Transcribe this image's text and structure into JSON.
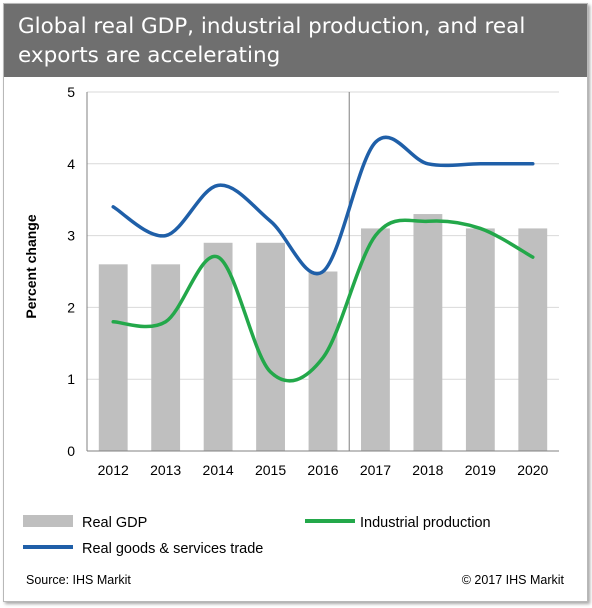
{
  "header": {
    "title": "Global real GDP, industrial production, and real exports are accelerating"
  },
  "chart_data": {
    "type": "bar",
    "title": "",
    "xlabel": "",
    "ylabel": "Percent change",
    "ylim": [
      0,
      5
    ],
    "yticks": [
      "0",
      "1",
      "2",
      "3",
      "4",
      "5"
    ],
    "categories": [
      "2012",
      "2013",
      "2014",
      "2015",
      "2016",
      "2017",
      "2018",
      "2019",
      "2020"
    ],
    "grid": true,
    "forecast_divider_after": "2016",
    "series": [
      {
        "name": "Real GDP",
        "type": "bar",
        "color": "#bfbfbf",
        "values": [
          2.6,
          2.6,
          2.9,
          2.9,
          2.5,
          3.1,
          3.3,
          3.1,
          3.1
        ]
      },
      {
        "name": "Real goods & services trade",
        "type": "line",
        "color": "#1f5fa8",
        "values": [
          3.4,
          3.0,
          3.7,
          3.2,
          2.5,
          4.3,
          4.0,
          4.0,
          4.0
        ]
      },
      {
        "name": "Industrial production",
        "type": "line",
        "color": "#23a84a",
        "values": [
          1.8,
          1.8,
          2.7,
          1.1,
          1.3,
          3.0,
          3.2,
          3.1,
          2.7
        ]
      }
    ],
    "legend_placement": "bottom",
    "source": "Source: IHS Markit",
    "copyright": "© 2017 IHS Markit"
  }
}
